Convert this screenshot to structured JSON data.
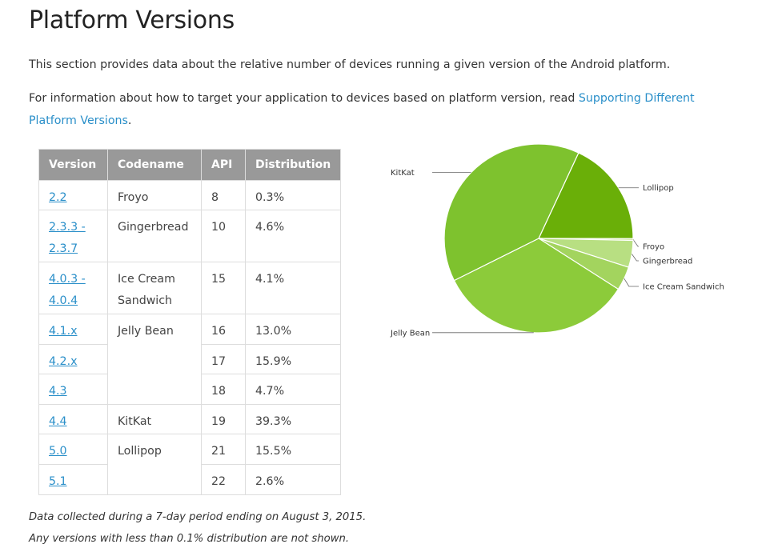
{
  "page": {
    "title": "Platform Versions",
    "intro": "This section provides data about the relative number of devices running a given version of the Android platform.",
    "info_prefix": "For information about how to target your application to devices based on platform version, read ",
    "info_link": "Supporting Different Platform Versions",
    "info_suffix": "."
  },
  "table": {
    "headers": [
      "Version",
      "Codename",
      "API",
      "Distribution"
    ]
  },
  "rows": [
    {
      "version": "2.2",
      "codename": "Froyo",
      "api": "8",
      "distribution": "0.3%"
    },
    {
      "version": "2.3.3 - 2.3.7",
      "codename": "Gingerbread",
      "api": "10",
      "distribution": "4.6%"
    },
    {
      "version": "4.0.3 - 4.0.4",
      "codename": "Ice Cream Sandwich",
      "api": "15",
      "distribution": "4.1%"
    },
    {
      "version": "4.1.x",
      "codename": "Jelly Bean",
      "api": "16",
      "distribution": "13.0%"
    },
    {
      "version": "4.2.x",
      "codename": "",
      "api": "17",
      "distribution": "15.9%"
    },
    {
      "version": "4.3",
      "codename": "",
      "api": "18",
      "distribution": "4.7%"
    },
    {
      "version": "4.4",
      "codename": "KitKat",
      "api": "19",
      "distribution": "39.3%"
    },
    {
      "version": "5.0",
      "codename": "Lollipop",
      "api": "21",
      "distribution": "15.5%"
    },
    {
      "version": "5.1",
      "codename": "",
      "api": "22",
      "distribution": "2.6%"
    }
  ],
  "footnotes": {
    "line1": "Data collected during a 7-day period ending on August 3, 2015.",
    "line2": "Any versions with less than 0.1% distribution are not shown."
  },
  "colors": {
    "link": "#2a8fc9",
    "header_bg": "#999999"
  },
  "chart_data": {
    "type": "pie",
    "title": "",
    "slices": [
      {
        "label": "Lollipop",
        "value": 18.1,
        "color": "#6aaf08"
      },
      {
        "label": "Froyo",
        "value": 0.3,
        "color": "#d4e9a6"
      },
      {
        "label": "Gingerbread",
        "value": 4.6,
        "color": "#b8df82"
      },
      {
        "label": "Ice Cream Sandwich",
        "value": 4.1,
        "color": "#a3d45e"
      },
      {
        "label": "Jelly Bean",
        "value": 33.6,
        "color": "#8ccb3a"
      },
      {
        "label": "KitKat",
        "value": 39.3,
        "color": "#7ec22e"
      }
    ],
    "start_angle_deg": -65,
    "label_positions": {
      "Lollipop": "right",
      "Froyo": "right",
      "Gingerbread": "right",
      "Ice Cream Sandwich": "right",
      "Jelly Bean": "left",
      "KitKat": "left"
    }
  }
}
